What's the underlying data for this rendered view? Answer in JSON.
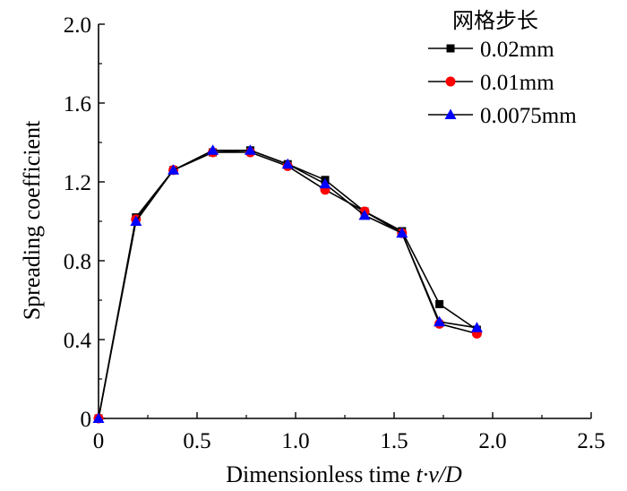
{
  "chart_data": {
    "type": "line",
    "title": "",
    "xlabel_text": "Dimensionless time ",
    "xlabel_var": "t·v/D",
    "ylabel": "Spreading coefficient",
    "xlim": [
      0,
      2.5
    ],
    "ylim": [
      0,
      2.0
    ],
    "xticks": [
      0,
      0.5,
      1.0,
      1.5,
      2.0,
      2.5
    ],
    "xtick_labels": [
      "0",
      "0.5",
      "1.0",
      "1.5",
      "2.0",
      "2.5"
    ],
    "yticks": [
      0,
      0.4,
      0.8,
      1.2,
      1.6,
      2.0
    ],
    "ytick_labels": [
      "0",
      "0.4",
      "0.8",
      "1.2",
      "1.6",
      "2.0"
    ],
    "grid": false,
    "legend_title": "网格步长",
    "legend_position": "top-right",
    "series": [
      {
        "name": "0.02mm",
        "marker": "square",
        "color": "#000000",
        "x": [
          0,
          0.19,
          0.38,
          0.58,
          0.77,
          0.96,
          1.15,
          1.35,
          1.54,
          1.73,
          1.92
        ],
        "y": [
          0,
          1.02,
          1.26,
          1.35,
          1.36,
          1.29,
          1.21,
          1.05,
          0.95,
          0.58,
          0.45
        ]
      },
      {
        "name": "0.01mm",
        "marker": "circle",
        "color": "#ff0000",
        "x": [
          0,
          0.19,
          0.38,
          0.58,
          0.77,
          0.96,
          1.15,
          1.35,
          1.54,
          1.73,
          1.92
        ],
        "y": [
          0,
          1.01,
          1.26,
          1.35,
          1.35,
          1.28,
          1.16,
          1.05,
          0.94,
          0.48,
          0.43
        ]
      },
      {
        "name": "0.0075mm",
        "marker": "triangle",
        "color": "#0000ff",
        "x": [
          0,
          0.19,
          0.38,
          0.58,
          0.77,
          0.96,
          1.15,
          1.35,
          1.54,
          1.73,
          1.92
        ],
        "y": [
          0,
          1.0,
          1.26,
          1.36,
          1.36,
          1.29,
          1.19,
          1.03,
          0.94,
          0.49,
          0.46
        ]
      }
    ]
  }
}
